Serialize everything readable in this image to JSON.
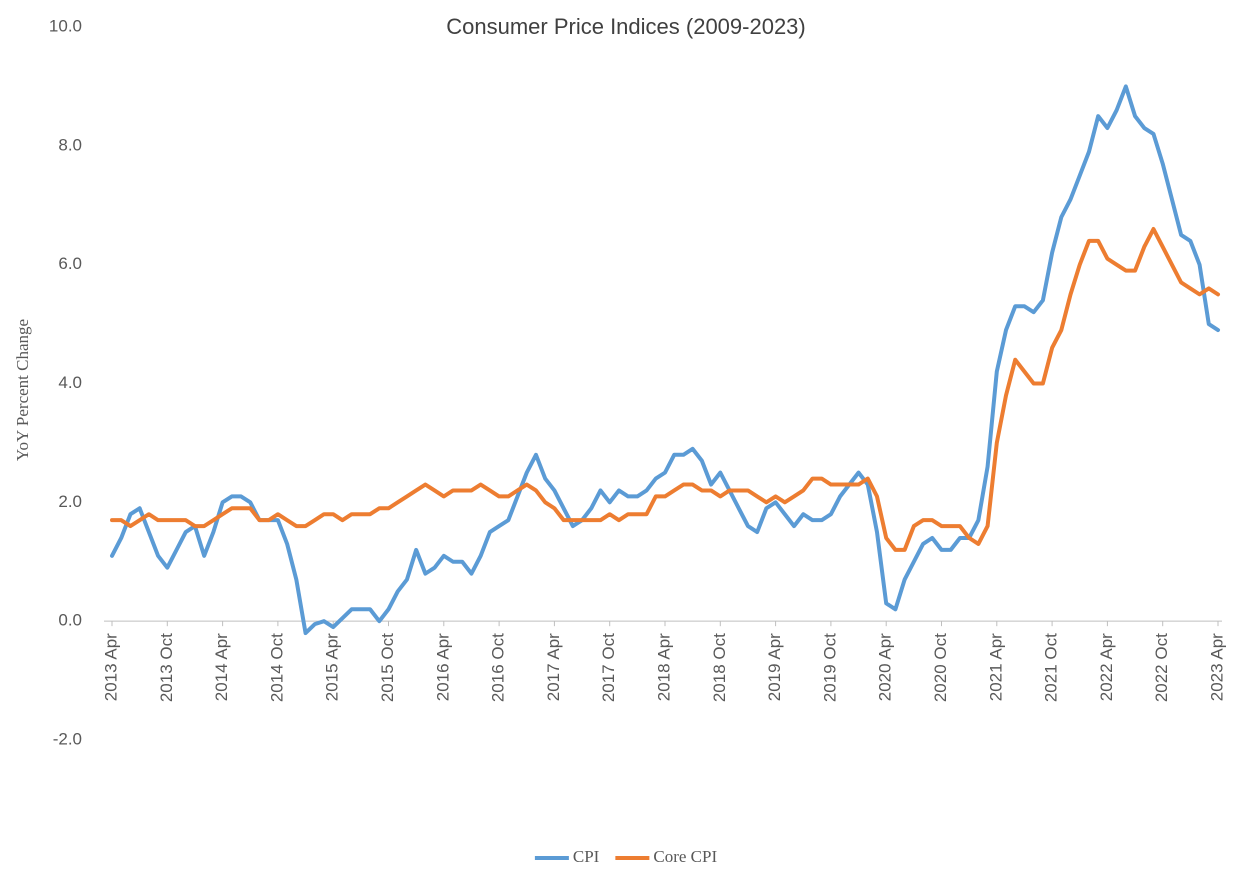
{
  "chart_data": {
    "type": "line",
    "title": "Consumer Price Indices (2009-2023)",
    "y_label": "YoY Percent Change",
    "legend": "bottom",
    "grid": false,
    "ylim": [
      -2,
      10
    ],
    "yticks": [
      {
        "value": -2,
        "label": "-2.0"
      },
      {
        "value": 0,
        "label": "0.0"
      },
      {
        "value": 2,
        "label": "2.0"
      },
      {
        "value": 4,
        "label": "4.0"
      },
      {
        "value": 6,
        "label": "6.0"
      },
      {
        "value": 8,
        "label": "8.0"
      },
      {
        "value": 10,
        "label": "10.0"
      }
    ],
    "categories": [
      "2013 Apr",
      null,
      null,
      null,
      null,
      null,
      "2013 Oct",
      null,
      null,
      null,
      null,
      null,
      "2014 Apr",
      null,
      null,
      null,
      null,
      null,
      "2014 Oct",
      null,
      null,
      null,
      null,
      null,
      "2015 Apr",
      null,
      null,
      null,
      null,
      null,
      "2015 Oct",
      null,
      null,
      null,
      null,
      null,
      "2016 Apr",
      null,
      null,
      null,
      null,
      null,
      "2016 Oct",
      null,
      null,
      null,
      null,
      null,
      "2017 Apr",
      null,
      null,
      null,
      null,
      null,
      "2017 Oct",
      null,
      null,
      null,
      null,
      null,
      "2018 Apr",
      null,
      null,
      null,
      null,
      null,
      "2018 Oct",
      null,
      null,
      null,
      null,
      null,
      "2019 Apr",
      null,
      null,
      null,
      null,
      null,
      "2019 Oct",
      null,
      null,
      null,
      null,
      null,
      "2020 Apr",
      null,
      null,
      null,
      null,
      null,
      "2020 Oct",
      null,
      null,
      null,
      null,
      null,
      "2021 Apr",
      null,
      null,
      null,
      null,
      null,
      "2021 Oct",
      null,
      null,
      null,
      null,
      null,
      "2022 Apr",
      null,
      null,
      null,
      null,
      null,
      "2022 Oct",
      null,
      null,
      null,
      null,
      null,
      "2023 Apr"
    ],
    "series": [
      {
        "name": "CPI",
        "color": "#5b9bd5",
        "values": [
          1.1,
          1.4,
          1.8,
          1.9,
          1.5,
          1.1,
          0.9,
          1.2,
          1.5,
          1.6,
          1.1,
          1.5,
          2.0,
          2.1,
          2.1,
          2.0,
          1.7,
          1.7,
          1.7,
          1.3,
          0.7,
          -0.2,
          -0.05,
          0.0,
          -0.1,
          0.05,
          0.2,
          0.2,
          0.2,
          0.0,
          0.2,
          0.5,
          0.7,
          1.2,
          0.8,
          0.9,
          1.1,
          1.0,
          1.0,
          0.8,
          1.1,
          1.5,
          1.6,
          1.7,
          2.1,
          2.5,
          2.8,
          2.4,
          2.2,
          1.9,
          1.6,
          1.7,
          1.9,
          2.2,
          2.0,
          2.2,
          2.1,
          2.1,
          2.2,
          2.4,
          2.5,
          2.8,
          2.8,
          2.9,
          2.7,
          2.3,
          2.5,
          2.2,
          1.9,
          1.6,
          1.5,
          1.9,
          2.0,
          1.8,
          1.6,
          1.8,
          1.7,
          1.7,
          1.8,
          2.1,
          2.3,
          2.5,
          2.3,
          1.5,
          0.3,
          0.2,
          0.7,
          1.0,
          1.3,
          1.4,
          1.2,
          1.2,
          1.4,
          1.4,
          1.7,
          2.6,
          4.2,
          4.9,
          5.3,
          5.3,
          5.2,
          5.4,
          6.2,
          6.8,
          7.1,
          7.5,
          7.9,
          8.5,
          8.3,
          8.6,
          9.0,
          8.5,
          8.3,
          8.2,
          7.7,
          7.1,
          6.5,
          6.4,
          6.0,
          5.0,
          4.9
        ]
      },
      {
        "name": "Core CPI",
        "color": "#ed7d31",
        "values": [
          1.7,
          1.7,
          1.6,
          1.7,
          1.8,
          1.7,
          1.7,
          1.7,
          1.7,
          1.6,
          1.6,
          1.7,
          1.8,
          1.9,
          1.9,
          1.9,
          1.7,
          1.7,
          1.8,
          1.7,
          1.6,
          1.6,
          1.7,
          1.8,
          1.8,
          1.7,
          1.8,
          1.8,
          1.8,
          1.9,
          1.9,
          2.0,
          2.1,
          2.2,
          2.3,
          2.2,
          2.1,
          2.2,
          2.2,
          2.2,
          2.3,
          2.2,
          2.1,
          2.1,
          2.2,
          2.3,
          2.2,
          2.0,
          1.9,
          1.7,
          1.7,
          1.7,
          1.7,
          1.7,
          1.8,
          1.7,
          1.8,
          1.8,
          1.8,
          2.1,
          2.1,
          2.2,
          2.3,
          2.3,
          2.2,
          2.2,
          2.1,
          2.2,
          2.2,
          2.2,
          2.1,
          2.0,
          2.1,
          2.0,
          2.1,
          2.2,
          2.4,
          2.4,
          2.3,
          2.3,
          2.3,
          2.3,
          2.4,
          2.1,
          1.4,
          1.2,
          1.2,
          1.6,
          1.7,
          1.7,
          1.6,
          1.6,
          1.6,
          1.4,
          1.3,
          1.6,
          3.0,
          3.8,
          4.4,
          4.2,
          4.0,
          4.0,
          4.6,
          4.9,
          5.5,
          6.0,
          6.4,
          6.4,
          6.1,
          6.0,
          5.9,
          5.9,
          6.3,
          6.6,
          6.3,
          6.0,
          5.7,
          5.6,
          5.5,
          5.6,
          5.5
        ]
      }
    ]
  }
}
